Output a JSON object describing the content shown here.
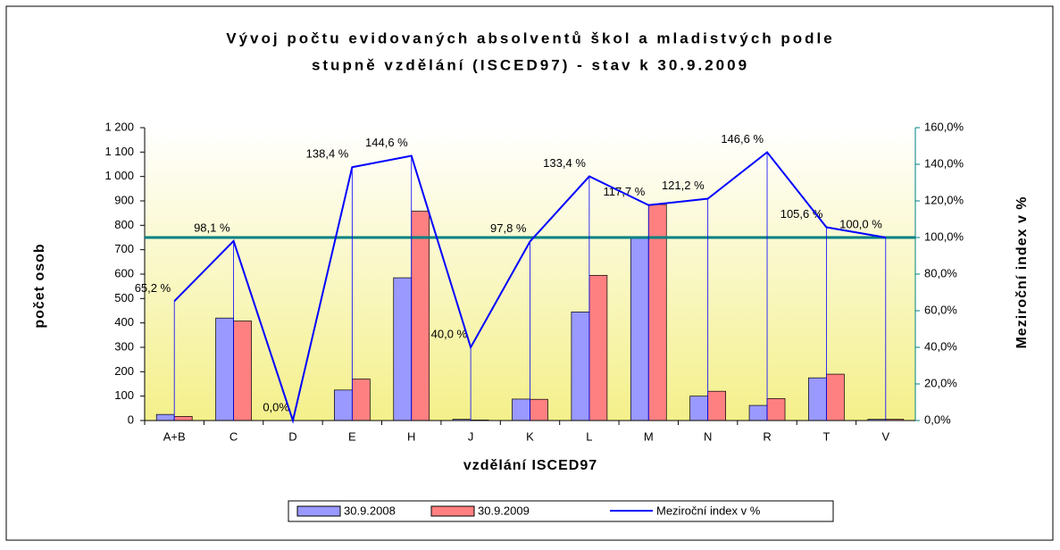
{
  "chart_data": {
    "type": "bar_line",
    "title": [
      "Vývoj počtu evidovaných absolventů škol a mladistvých podle",
      "stupně vzdělání (ISCED97) - stav k 30.9.2009"
    ],
    "x_label": "vzdělání ISCED97",
    "y_label": "počet osob",
    "y2_label": "Meziroční index v %",
    "categories": [
      "A+B",
      "C",
      "D",
      "E",
      "H",
      "J",
      "K",
      "L",
      "M",
      "N",
      "R",
      "T",
      "V"
    ],
    "series": [
      {
        "name": "30.9.2008",
        "type": "bar",
        "color": "#9999ff",
        "values": [
          25,
          420,
          0,
          125,
          585,
          5,
          88,
          445,
          750,
          100,
          62,
          175,
          5
        ]
      },
      {
        "name": "30.9.2009",
        "type": "bar",
        "color": "#ff8080",
        "values": [
          17,
          408,
          0,
          170,
          858,
          2,
          87,
          595,
          885,
          120,
          90,
          190,
          5
        ]
      },
      {
        "name": "Meziroční index v %",
        "type": "line",
        "axis": "y2",
        "color": "#0000ff",
        "values": [
          65.2,
          98.1,
          0.0,
          138.4,
          144.6,
          40.0,
          97.8,
          133.4,
          117.7,
          121.2,
          146.6,
          105.6,
          100.0
        ],
        "value_labels": [
          "65,2 %",
          "98,1 %",
          "0,0%",
          "138,4 %",
          "144,6 %",
          "40,0 %",
          "97,8 %",
          "133,4 %",
          "117,7 %",
          "121,2 %",
          "146,6 %",
          "105,6 %",
          "100,0 %"
        ]
      }
    ],
    "ylim": [
      0,
      1200
    ],
    "yticks": [
      0,
      100,
      200,
      300,
      400,
      500,
      600,
      700,
      800,
      900,
      {
        "value": 1000,
        "label": "1 000"
      },
      {
        "value": 1100,
        "label": "1 100"
      },
      {
        "value": 1200,
        "label": "1 200"
      }
    ],
    "y2lim": [
      0,
      160
    ],
    "y2ticks": [
      {
        "value": 0,
        "label": "0,0%"
      },
      {
        "value": 20,
        "label": "20,0%"
      },
      {
        "value": 40,
        "label": "40,0%"
      },
      {
        "value": 60,
        "label": "60,0%"
      },
      {
        "value": 80,
        "label": "80,0%"
      },
      {
        "value": 100,
        "label": "100,0%"
      },
      {
        "value": 120,
        "label": "120,0%"
      },
      {
        "value": 140,
        "label": "140,0%"
      },
      {
        "value": 160,
        "label": "160,0%"
      }
    ],
    "reference_line": 100,
    "reference_color": "#008080"
  }
}
